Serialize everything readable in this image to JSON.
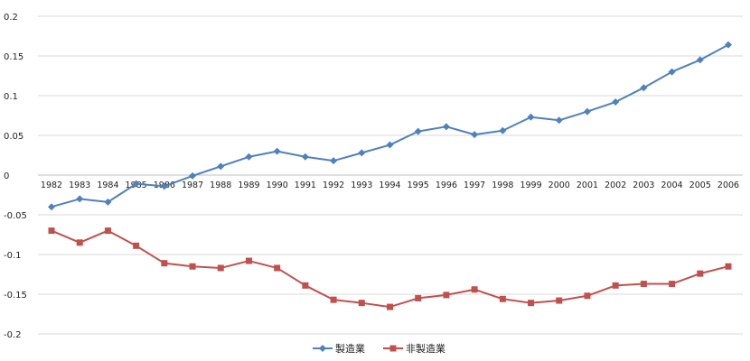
{
  "chart_data": {
    "type": "line",
    "title": "",
    "xlabel": "",
    "ylabel": "",
    "ylim": [
      -0.2,
      0.2
    ],
    "yticks": [
      0.2,
      0.15,
      0.1,
      0.05,
      0,
      -0.05,
      -0.1,
      -0.15,
      -0.2
    ],
    "ytick_labels": [
      "0.2",
      "0.15",
      "0.1",
      "0.05",
      "0",
      "-0.05",
      "-0.1",
      "-0.15",
      "-0.2"
    ],
    "grid": true,
    "legend_position": "bottom",
    "x": [
      "1982",
      "1983",
      "1984",
      "1985",
      "1986",
      "1987",
      "1988",
      "1989",
      "1990",
      "1991",
      "1992",
      "1993",
      "1994",
      "1995",
      "1996",
      "1997",
      "1998",
      "1999",
      "2000",
      "2001",
      "2002",
      "2003",
      "2004",
      "2005",
      "2006"
    ],
    "series": [
      {
        "name": "製造業",
        "color": "#4f81bd",
        "marker": "diamond",
        "values": [
          -0.04,
          -0.03,
          -0.034,
          -0.011,
          -0.014,
          -0.001,
          0.011,
          0.023,
          0.03,
          0.023,
          0.018,
          0.028,
          0.038,
          0.055,
          0.061,
          0.051,
          0.056,
          0.073,
          0.069,
          0.08,
          0.092,
          0.11,
          0.13,
          0.145,
          0.164
        ]
      },
      {
        "name": "非製造業",
        "color": "#c0504d",
        "marker": "square",
        "values": [
          -0.07,
          -0.085,
          -0.07,
          -0.089,
          -0.111,
          -0.115,
          -0.117,
          -0.108,
          -0.117,
          -0.139,
          -0.157,
          -0.161,
          -0.166,
          -0.155,
          -0.151,
          -0.144,
          -0.156,
          -0.161,
          -0.158,
          -0.152,
          -0.139,
          -0.137,
          -0.137,
          -0.124,
          -0.115
        ]
      }
    ]
  }
}
